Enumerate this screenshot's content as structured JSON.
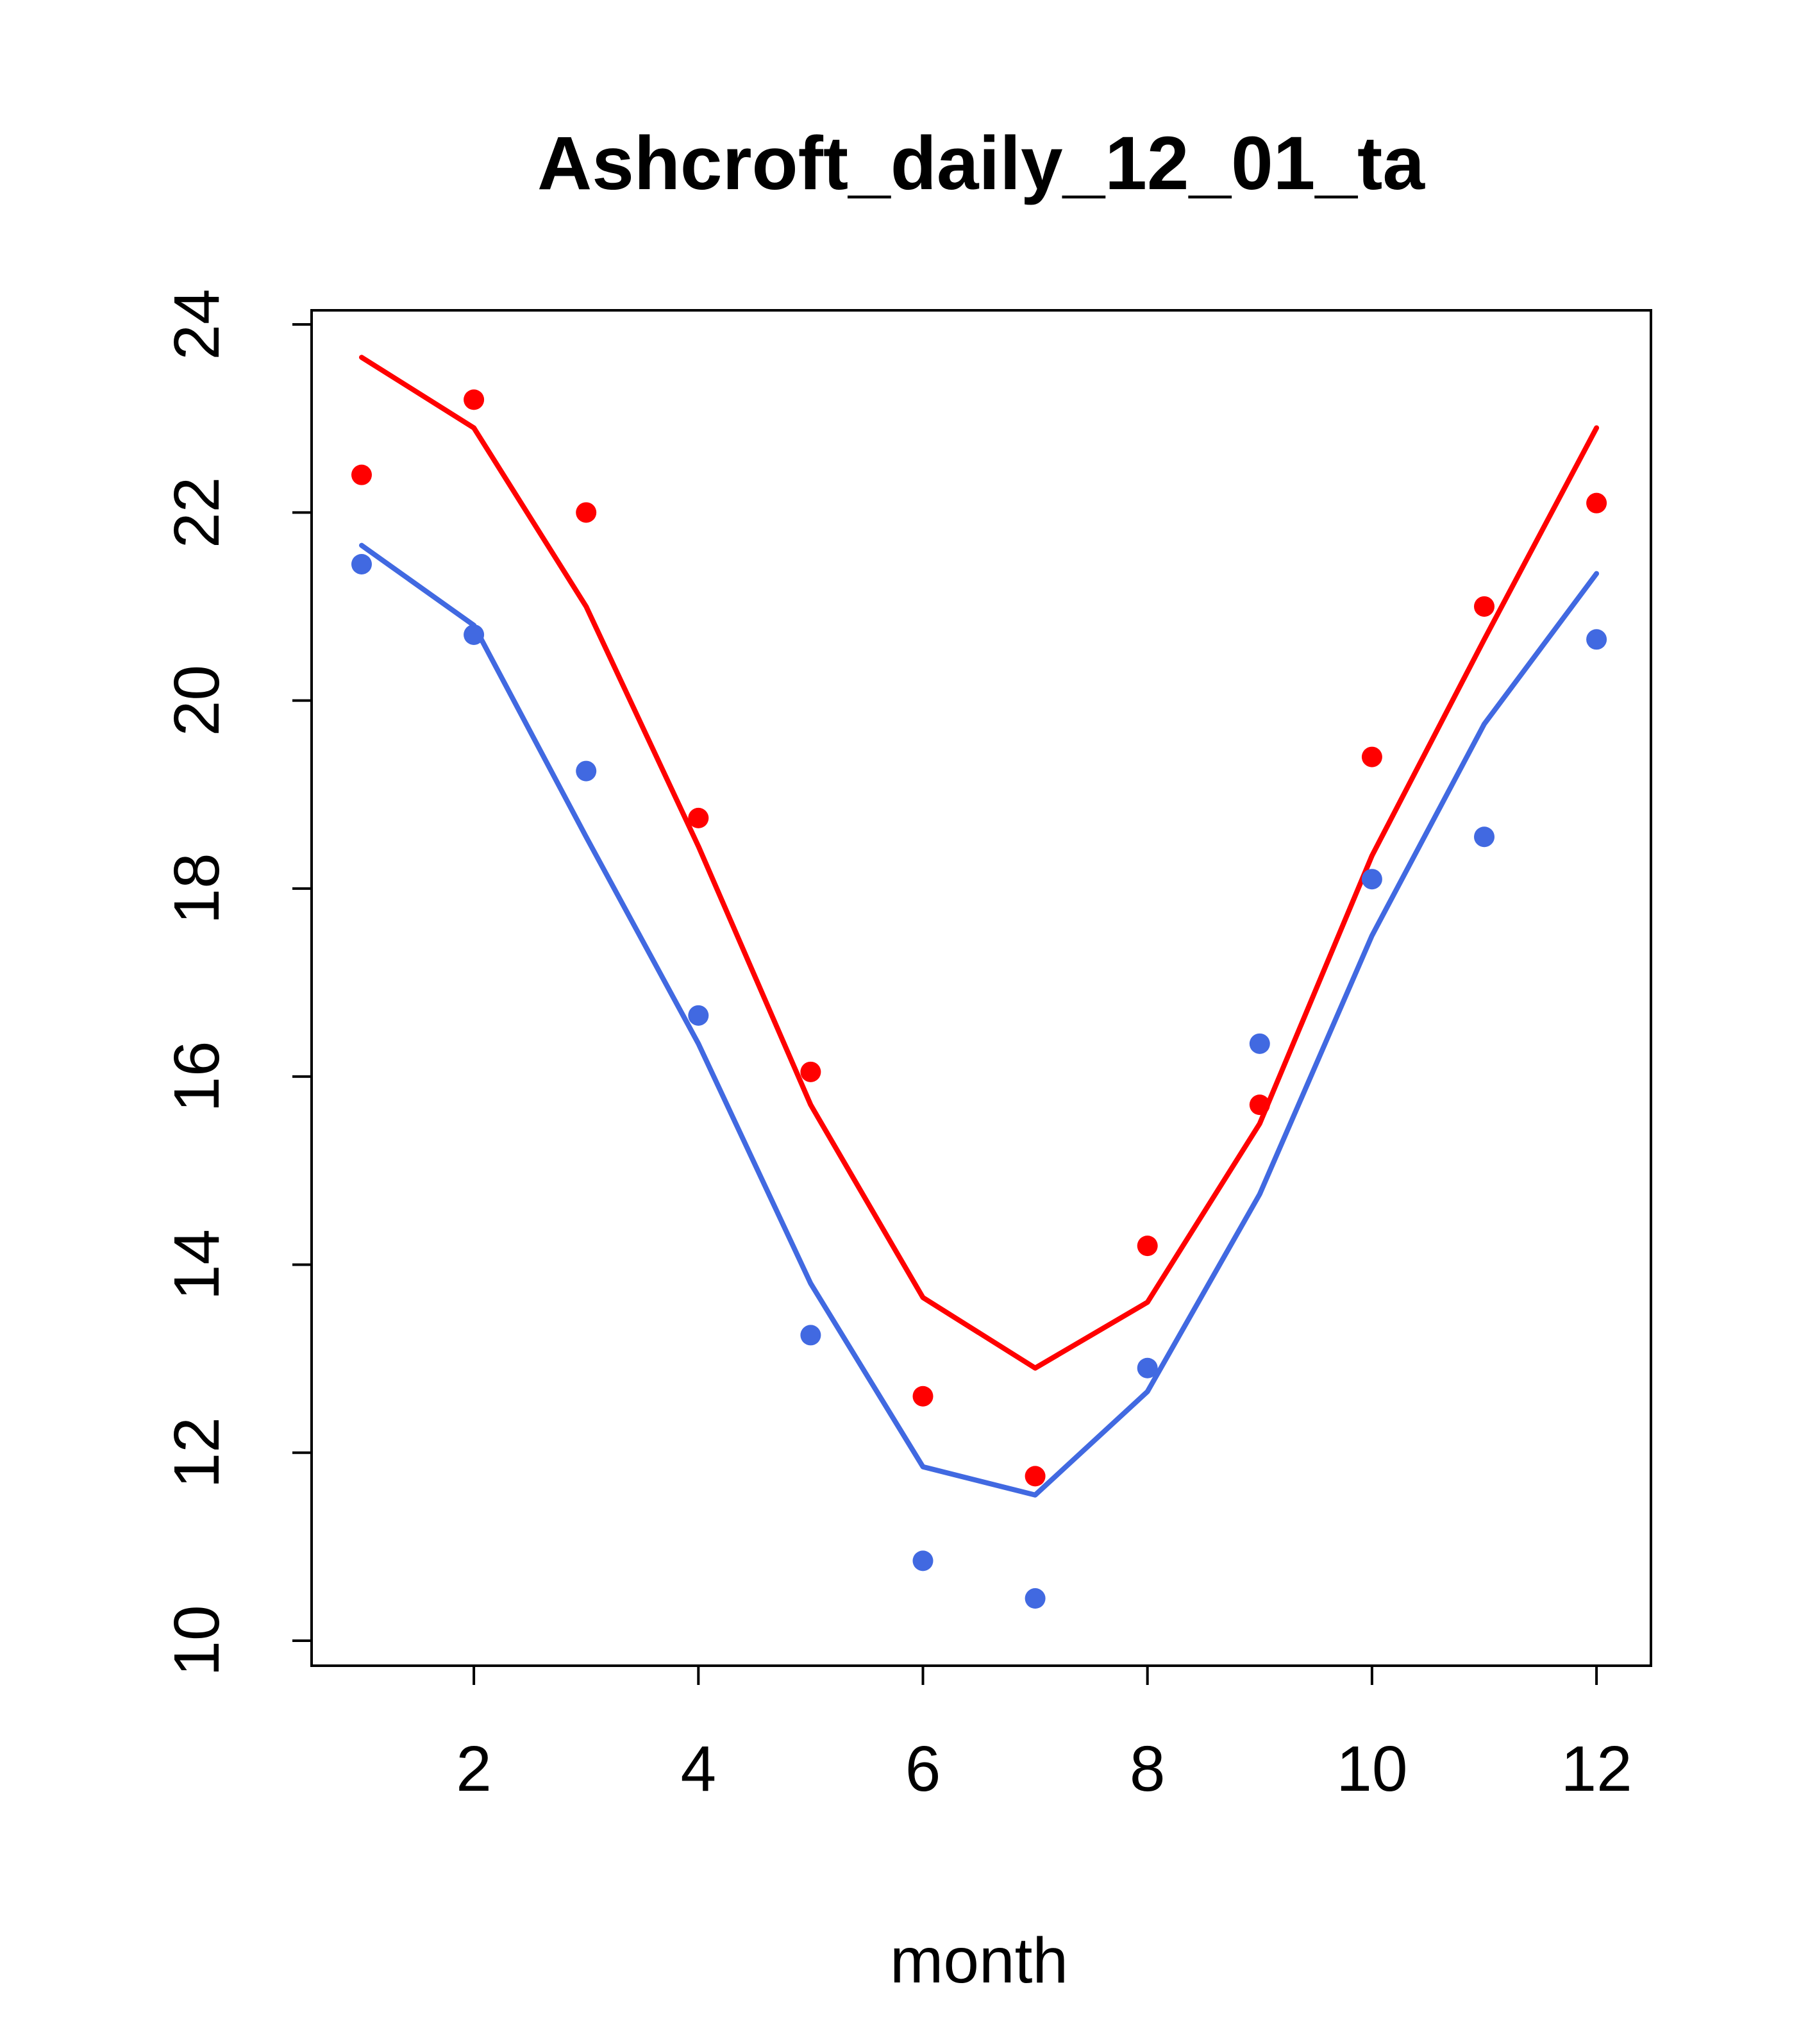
{
  "title": "Ashcroft_daily_12_01_ta",
  "xlabel": "month",
  "colors": {
    "red": "#ff0000",
    "blue": "#4169e1",
    "axis": "#000000",
    "background": "#ffffff"
  },
  "chart_data": {
    "type": "scatter",
    "title": "Ashcroft_daily_12_01_ta",
    "xlabel": "month",
    "ylabel": "",
    "x": [
      1,
      2,
      3,
      4,
      5,
      6,
      7,
      8,
      9,
      10,
      11,
      12
    ],
    "xticks": [
      2,
      4,
      6,
      8,
      10,
      12
    ],
    "yticks": [
      10,
      12,
      14,
      16,
      18,
      20,
      22,
      24
    ],
    "xlim": [
      0.56,
      12.44
    ],
    "ylim": [
      10,
      24
    ],
    "grid": false,
    "legend": "none",
    "series": [
      {
        "name": "red-line",
        "type": "line",
        "color": "#ff0000",
        "values": [
          23.65,
          22.9,
          21.0,
          18.45,
          15.7,
          13.65,
          12.9,
          13.6,
          15.5,
          18.35,
          20.65,
          22.9
        ]
      },
      {
        "name": "blue-line",
        "type": "line",
        "color": "#4169e1",
        "values": [
          21.65,
          20.8,
          18.55,
          16.35,
          13.8,
          11.85,
          11.55,
          12.65,
          14.75,
          17.5,
          19.75,
          21.35
        ]
      },
      {
        "name": "red-points",
        "type": "points",
        "color": "#ff0000",
        "values": [
          22.4,
          23.2,
          22.0,
          18.75,
          16.05,
          12.6,
          11.75,
          14.2,
          15.7,
          19.4,
          21.0,
          22.1
        ]
      },
      {
        "name": "blue-points",
        "type": "points",
        "color": "#4169e1",
        "values": [
          21.45,
          20.7,
          19.25,
          16.65,
          13.25,
          10.85,
          10.45,
          12.9,
          16.35,
          18.1,
          18.55,
          20.65
        ]
      }
    ]
  }
}
